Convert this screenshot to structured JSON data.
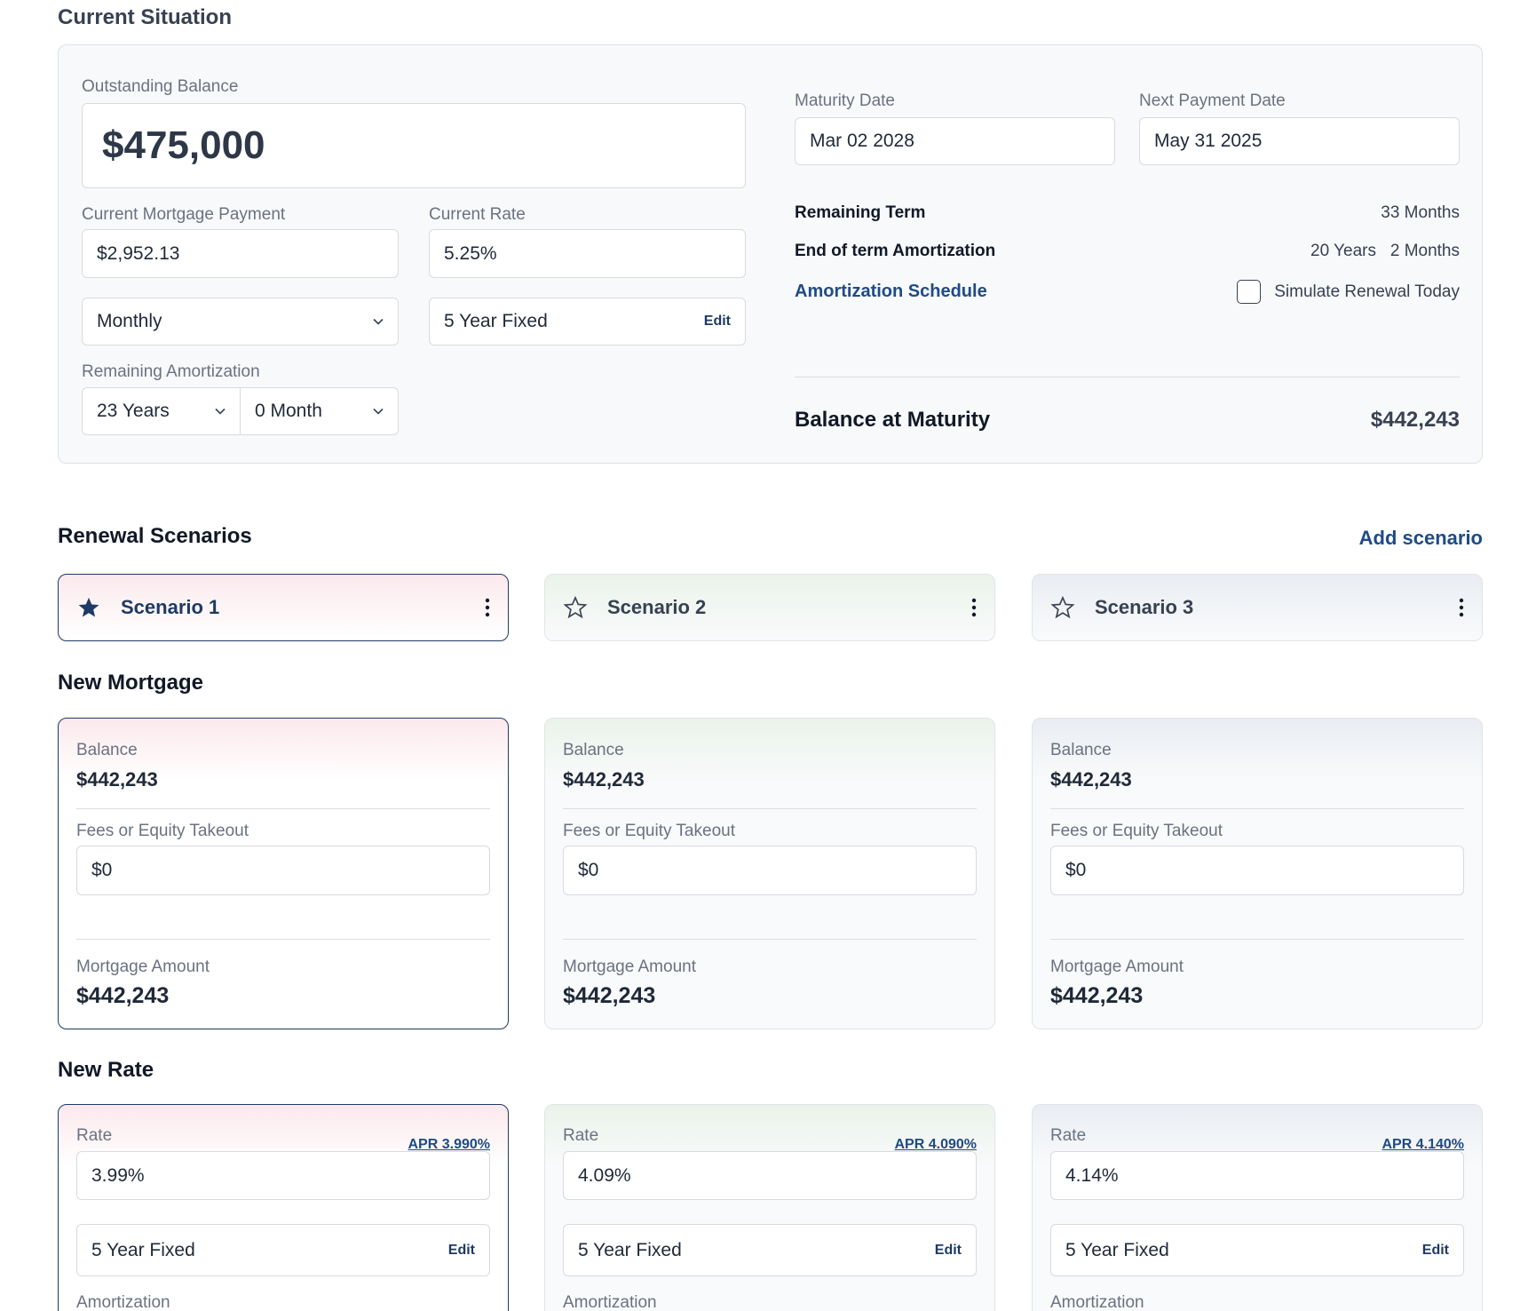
{
  "current": {
    "title": "Current Situation",
    "outstanding_label": "Outstanding Balance",
    "outstanding_value": "$475,000",
    "payment_label": "Current Mortgage Payment",
    "payment_value": "$2,952.13",
    "rate_label": "Current Rate",
    "rate_value": "5.25%",
    "frequency_value": "Monthly",
    "term_value": "5 Year Fixed",
    "edit_label": "Edit",
    "amort_label": "Remaining Amortization",
    "amort_years": "23 Years",
    "amort_months": "0 Month",
    "maturity_label": "Maturity Date",
    "maturity_value": "Mar 02 2028",
    "next_payment_label": "Next Payment Date",
    "next_payment_value": "May 31 2025",
    "remaining_term_label": "Remaining Term",
    "remaining_term_value": "33 Months",
    "eot_amort_label": "End of term Amortization",
    "eot_amort_years": "20 Years",
    "eot_amort_months": "2 Months",
    "schedule_link": "Amortization Schedule",
    "simulate_label": "Simulate Renewal Today",
    "simulate_checked": false,
    "balance_maturity_label": "Balance at Maturity",
    "balance_maturity_value": "$442,243"
  },
  "renewal": {
    "title": "Renewal Scenarios",
    "add_label": "Add scenario",
    "scenarios": [
      {
        "name": "Scenario 1",
        "starred": true
      },
      {
        "name": "Scenario 2",
        "starred": false
      },
      {
        "name": "Scenario 3",
        "starred": false
      }
    ]
  },
  "new_mortgage": {
    "title": "New Mortgage",
    "balance_label": "Balance",
    "fees_label": "Fees or Equity Takeout",
    "amount_label": "Mortgage Amount",
    "cards": [
      {
        "balance": "$442,243",
        "fees": "$0",
        "amount": "$442,243"
      },
      {
        "balance": "$442,243",
        "fees": "$0",
        "amount": "$442,243"
      },
      {
        "balance": "$442,243",
        "fees": "$0",
        "amount": "$442,243"
      }
    ]
  },
  "new_rate": {
    "title": "New Rate",
    "rate_label": "Rate",
    "amort_label": "Amortization",
    "edit_label": "Edit",
    "cards": [
      {
        "apr": "APR 3.990%",
        "rate": "3.99%",
        "term": "5 Year Fixed"
      },
      {
        "apr": "APR 4.090%",
        "rate": "4.09%",
        "term": "5 Year Fixed"
      },
      {
        "apr": "APR 4.140%",
        "rate": "4.14%",
        "term": "5 Year Fixed"
      }
    ]
  },
  "colors": {
    "accent": "#1e4b86",
    "selected_border": "#1e3a66"
  },
  "icons": [
    "chevron-down-icon",
    "star-filled-icon",
    "star-outline-icon",
    "more-vertical-icon",
    "checkbox-icon"
  ]
}
